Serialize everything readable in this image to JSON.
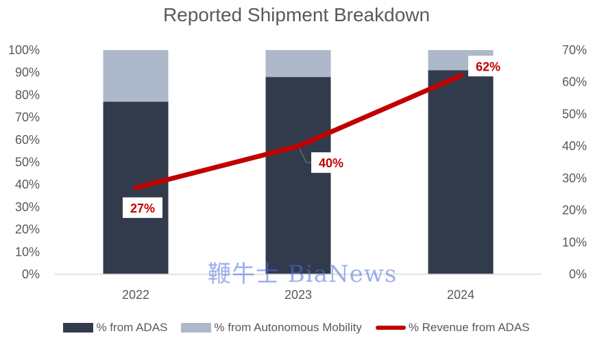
{
  "chart_data": {
    "type": "bar",
    "title": "Reported Shipment Breakdown",
    "categories": [
      "2022",
      "2023",
      "2024"
    ],
    "series": [
      {
        "name": "% from ADAS",
        "type": "stacked-bar",
        "axis": "left",
        "values": [
          77,
          88,
          91
        ],
        "color": "#323b4c"
      },
      {
        "name": "% from Autonomous Mobility",
        "type": "stacked-bar",
        "axis": "left",
        "values": [
          23,
          12,
          9
        ],
        "color": "#adb9ca"
      },
      {
        "name": "% Revenue from ADAS",
        "type": "line",
        "axis": "right",
        "values": [
          27,
          40,
          62
        ],
        "labels": [
          "27%",
          "40%",
          "62%"
        ],
        "color": "#c00000"
      }
    ],
    "left_axis": {
      "ticks": [
        "0%",
        "10%",
        "20%",
        "30%",
        "40%",
        "50%",
        "60%",
        "70%",
        "80%",
        "90%",
        "100%"
      ],
      "range": [
        0,
        100
      ]
    },
    "right_axis": {
      "ticks": [
        "0%",
        "10%",
        "20%",
        "30%",
        "40%",
        "50%",
        "60%",
        "70%"
      ],
      "range": [
        0,
        70
      ]
    },
    "grid": false,
    "legend_position": "bottom"
  },
  "watermark": "鞭牛士 BiaNews"
}
